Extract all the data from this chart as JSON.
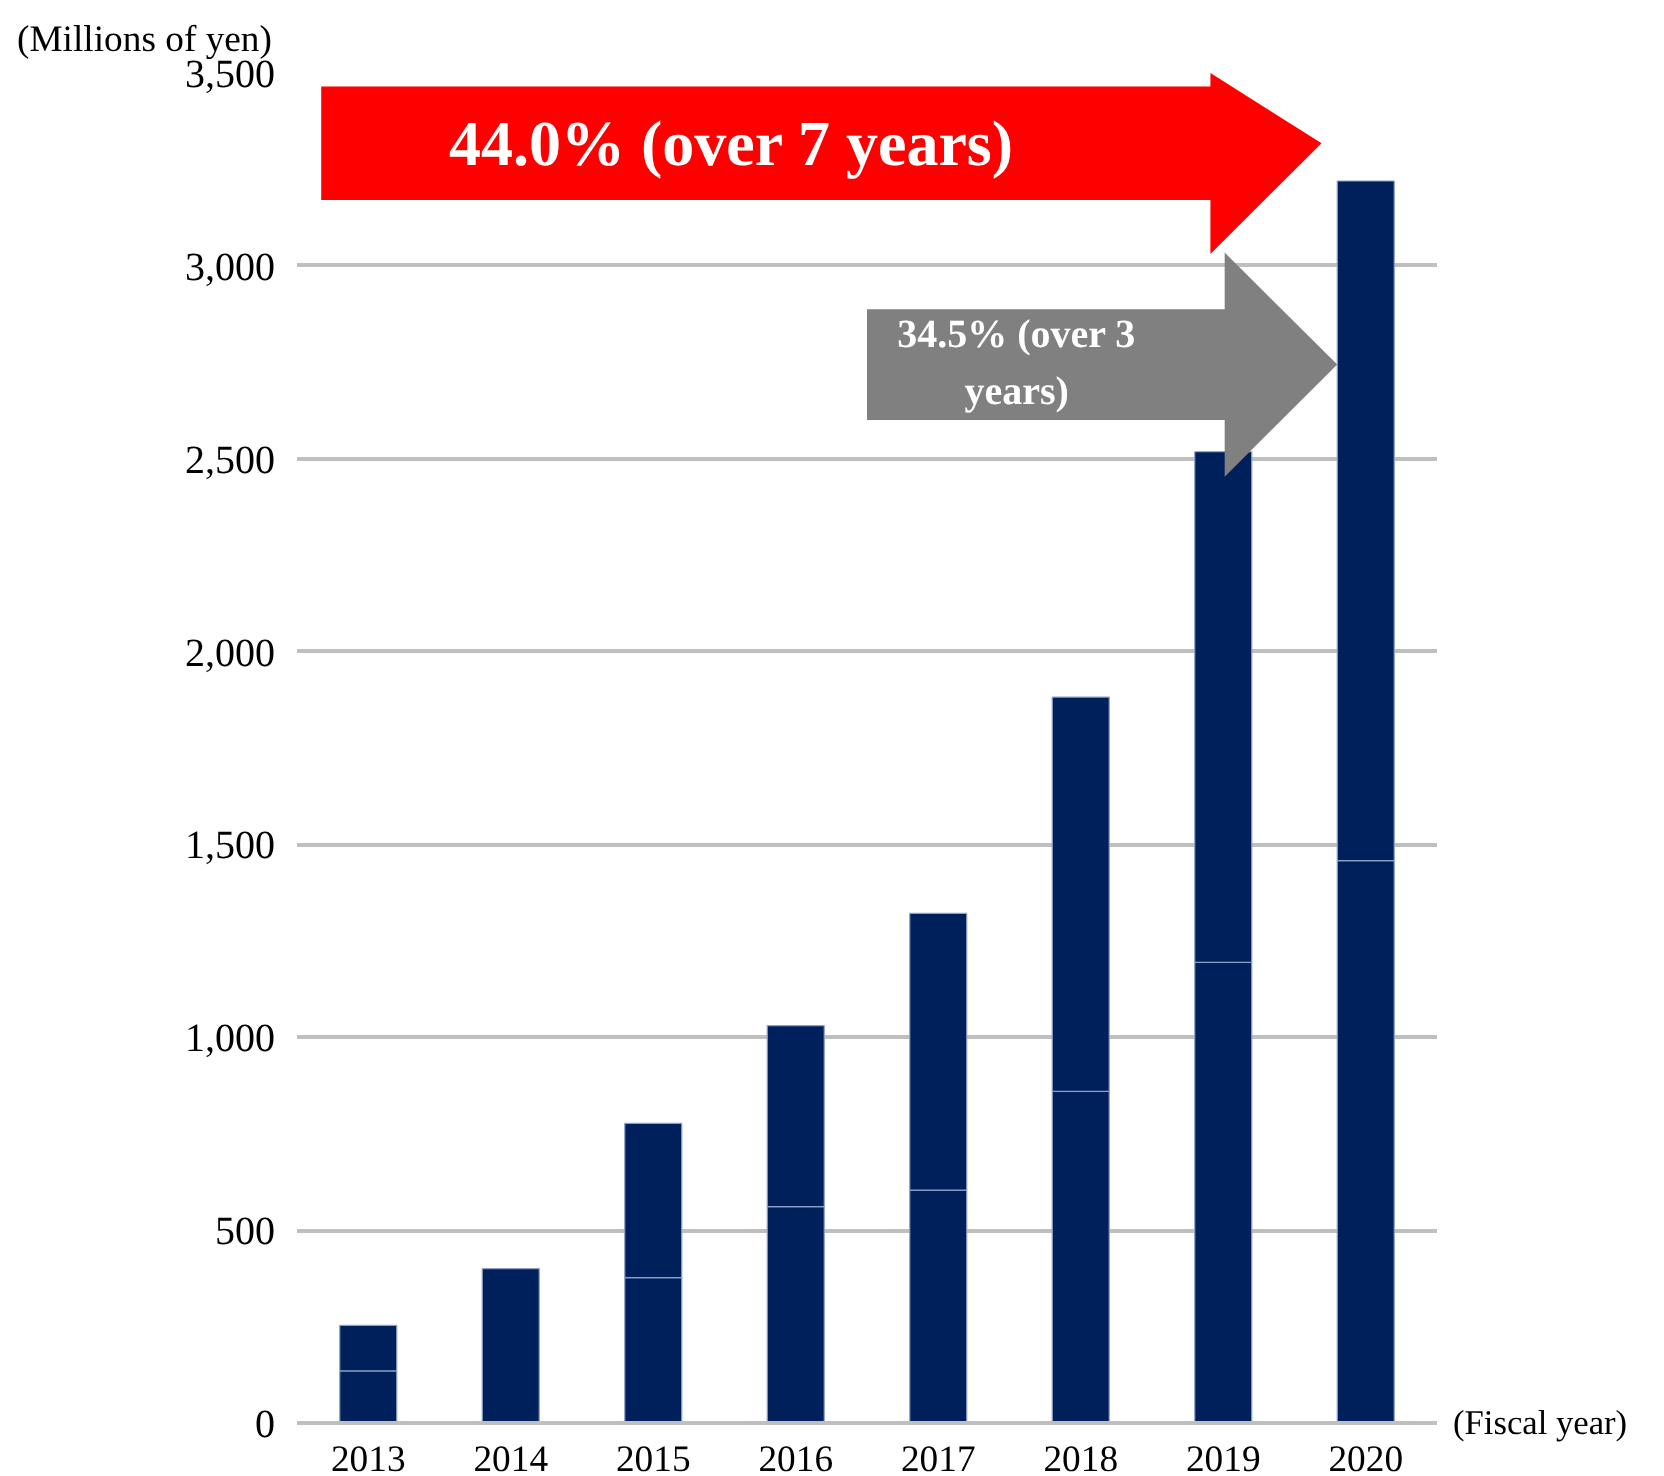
{
  "chart_data": {
    "type": "bar",
    "stacked": true,
    "ylabel": "(Millions of yen)",
    "xlabel": "(Fiscal year)",
    "categories": [
      "2013",
      "2014",
      "2015",
      "2016",
      "2017",
      "2018",
      "2019",
      "2020"
    ],
    "series": [
      {
        "color": "#00205b",
        "values": [
          135,
          400,
          377,
          561,
          604,
          860,
          1194,
          1458
        ]
      },
      {
        "color": "#00205b",
        "values": [
          118,
          null,
          400,
          469,
          717,
          1022,
          1324,
          1762
        ]
      }
    ],
    "ylim": [
      0,
      3500
    ],
    "yticks": [
      {
        "value": 0,
        "label": "0"
      },
      {
        "value": 500,
        "label": "500"
      },
      {
        "value": 1000,
        "label": "1,000"
      },
      {
        "value": 1500,
        "label": "1,500"
      },
      {
        "value": 2000,
        "label": "2,000"
      },
      {
        "value": 2500,
        "label": "2,500"
      },
      {
        "value": 3000,
        "label": "3,000"
      },
      {
        "value": 3500,
        "label": "3,500"
      }
    ],
    "grid": "y",
    "annotations": [
      "44.0% (over 7 years)",
      "34.5% (over 3 years)"
    ]
  }
}
